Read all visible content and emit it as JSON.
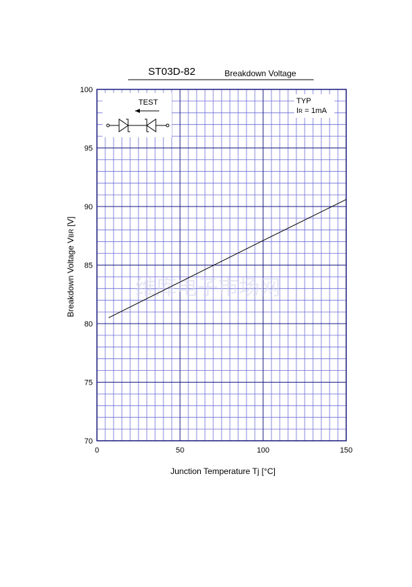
{
  "chart_data": {
    "type": "line",
    "title": "ST03D-82",
    "subtitle": "Breakdown Voltage",
    "xlabel": "Junction Temperature  Tj  [°C]",
    "ylabel": "Breakdown Voltage  V",
    "ylabel_sub": "BR",
    "ylabel_suffix": " [V]",
    "annotations": {
      "test": "TEST",
      "typ": "TYP",
      "cond": "I",
      "cond_sub": "R",
      "cond_rest": " = 1mA",
      "watermark": "维库电子市场网"
    },
    "x": [
      7,
      100,
      150
    ],
    "series": [
      {
        "color": "#000000",
        "values": [
          80.5,
          87.1,
          90.6
        ]
      }
    ],
    "xlim": [
      0,
      150
    ],
    "xticks": [
      0,
      50,
      100,
      150
    ],
    "ylim": [
      70,
      100
    ],
    "yticks": [
      70,
      75,
      80,
      85,
      90,
      95,
      100
    ],
    "grid": true,
    "grid_color": "#6b6bd6",
    "major_color": "#1a1a80"
  }
}
